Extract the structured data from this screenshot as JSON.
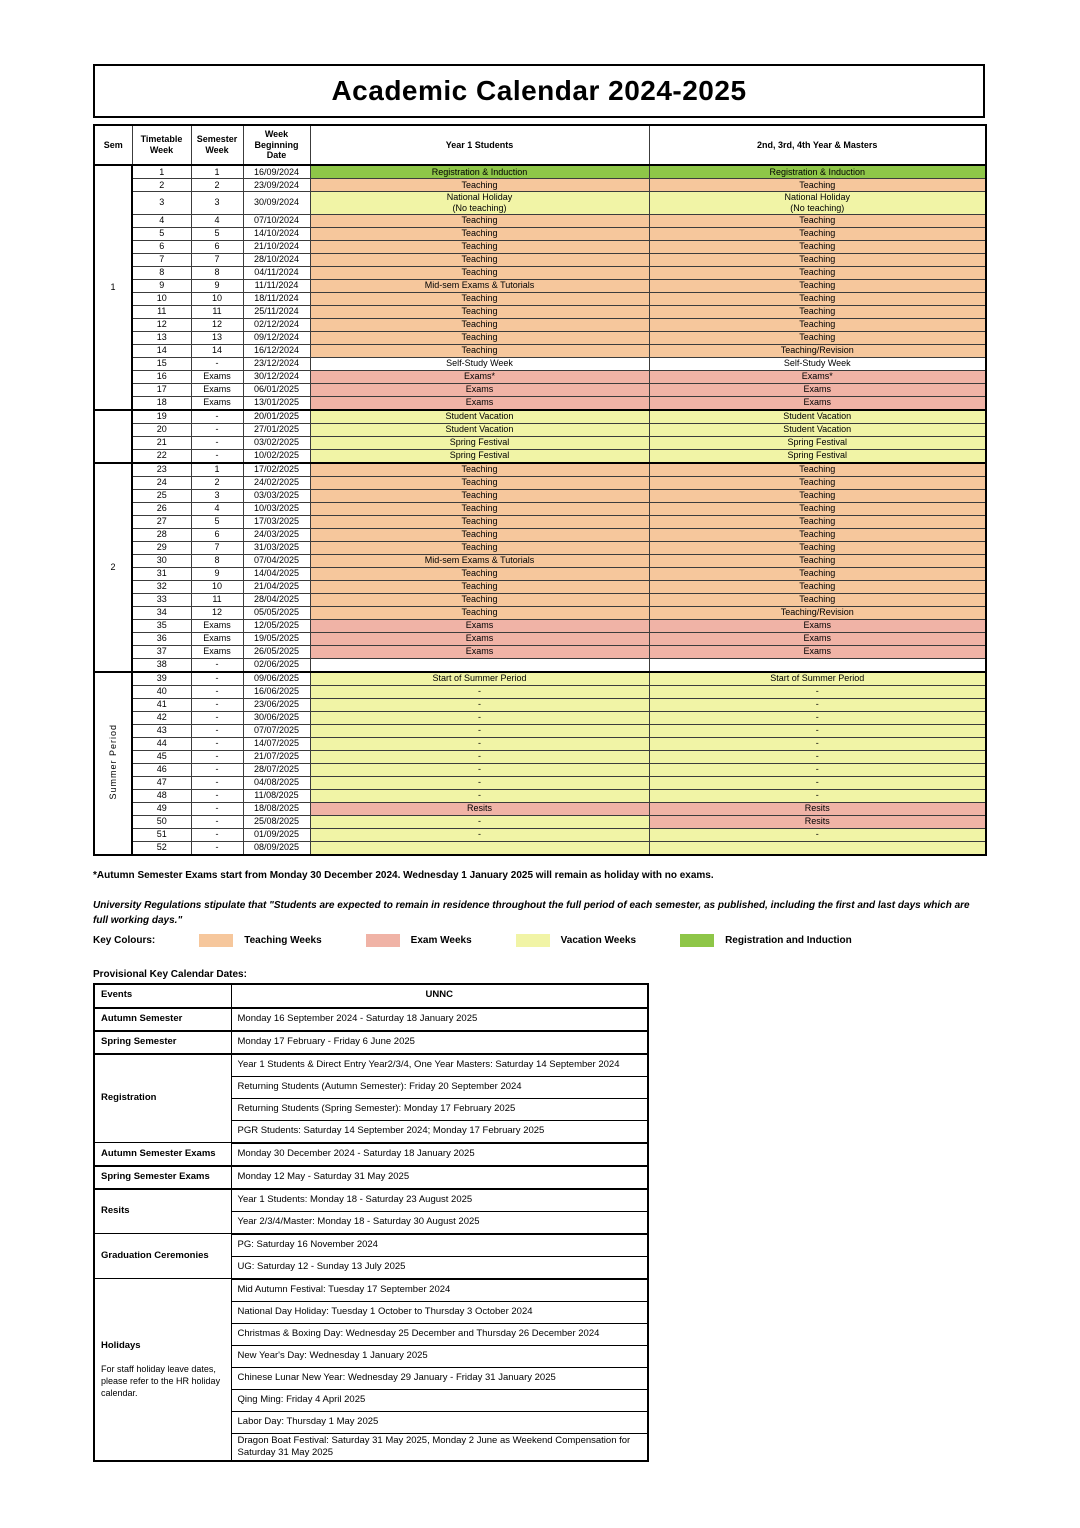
{
  "title": "Academic Calendar 2024-2025",
  "colors": {
    "teaching": "#F6C79C",
    "exams": "#F0B3A6",
    "vacation": "#F1F4A6",
    "induction": "#8EC648",
    "plain": "#FFFFFF"
  },
  "main_table": {
    "headers": [
      "Sem",
      "Timetable Week",
      "Semester Week",
      "Week Beginning Date",
      "Year 1 Students",
      "2nd, 3rd, 4th Year & Masters"
    ],
    "groups": [
      {
        "label": "1",
        "vertical": false,
        "count": 18
      },
      {
        "label": "",
        "vertical": false,
        "count": 4
      },
      {
        "label": "2",
        "vertical": false,
        "count": 16
      },
      {
        "label": "Summer Period",
        "vertical": true,
        "count": 14
      }
    ],
    "rows": [
      [
        "1",
        "1",
        "16/09/2024",
        "Registration & Induction",
        "induction",
        "Registration & Induction",
        "induction"
      ],
      [
        "2",
        "2",
        "23/09/2024",
        "Teaching",
        "teaching",
        "Teaching",
        "teaching"
      ],
      [
        "3",
        "3",
        "30/09/2024",
        "National Holiday\n(No teaching)",
        "vacation",
        "National Holiday\n(No teaching)",
        "vacation"
      ],
      [
        "4",
        "4",
        "07/10/2024",
        "Teaching",
        "teaching",
        "Teaching",
        "teaching"
      ],
      [
        "5",
        "5",
        "14/10/2024",
        "Teaching",
        "teaching",
        "Teaching",
        "teaching"
      ],
      [
        "6",
        "6",
        "21/10/2024",
        "Teaching",
        "teaching",
        "Teaching",
        "teaching"
      ],
      [
        "7",
        "7",
        "28/10/2024",
        "Teaching",
        "teaching",
        "Teaching",
        "teaching"
      ],
      [
        "8",
        "8",
        "04/11/2024",
        "Teaching",
        "teaching",
        "Teaching",
        "teaching"
      ],
      [
        "9",
        "9",
        "11/11/2024",
        "Mid-sem Exams & Tutorials",
        "teaching",
        "Teaching",
        "teaching"
      ],
      [
        "10",
        "10",
        "18/11/2024",
        "Teaching",
        "teaching",
        "Teaching",
        "teaching"
      ],
      [
        "11",
        "11",
        "25/11/2024",
        "Teaching",
        "teaching",
        "Teaching",
        "teaching"
      ],
      [
        "12",
        "12",
        "02/12/2024",
        "Teaching",
        "teaching",
        "Teaching",
        "teaching"
      ],
      [
        "13",
        "13",
        "09/12/2024",
        "Teaching",
        "teaching",
        "Teaching",
        "teaching"
      ],
      [
        "14",
        "14",
        "16/12/2024",
        "Teaching",
        "teaching",
        "Teaching/Revision",
        "teaching"
      ],
      [
        "15",
        "-",
        "23/12/2024",
        "Self-Study Week",
        "plain",
        "Self-Study Week",
        "plain"
      ],
      [
        "16",
        "Exams",
        "30/12/2024",
        "Exams*",
        "exams",
        "Exams*",
        "exams"
      ],
      [
        "17",
        "Exams",
        "06/01/2025",
        "Exams",
        "exams",
        "Exams",
        "exams"
      ],
      [
        "18",
        "Exams",
        "13/01/2025",
        "Exams",
        "exams",
        "Exams",
        "exams"
      ],
      [
        "19",
        "-",
        "20/01/2025",
        "Student Vacation",
        "vacation",
        "Student Vacation",
        "vacation"
      ],
      [
        "20",
        "-",
        "27/01/2025",
        "Student Vacation",
        "vacation",
        "Student Vacation",
        "vacation"
      ],
      [
        "21",
        "-",
        "03/02/2025",
        "Spring Festival",
        "vacation",
        "Spring Festival",
        "vacation"
      ],
      [
        "22",
        "-",
        "10/02/2025",
        "Spring Festival",
        "vacation",
        "Spring Festival",
        "vacation"
      ],
      [
        "23",
        "1",
        "17/02/2025",
        "Teaching",
        "teaching",
        "Teaching",
        "teaching"
      ],
      [
        "24",
        "2",
        "24/02/2025",
        "Teaching",
        "teaching",
        "Teaching",
        "teaching"
      ],
      [
        "25",
        "3",
        "03/03/2025",
        "Teaching",
        "teaching",
        "Teaching",
        "teaching"
      ],
      [
        "26",
        "4",
        "10/03/2025",
        "Teaching",
        "teaching",
        "Teaching",
        "teaching"
      ],
      [
        "27",
        "5",
        "17/03/2025",
        "Teaching",
        "teaching",
        "Teaching",
        "teaching"
      ],
      [
        "28",
        "6",
        "24/03/2025",
        "Teaching",
        "teaching",
        "Teaching",
        "teaching"
      ],
      [
        "29",
        "7",
        "31/03/2025",
        "Teaching",
        "teaching",
        "Teaching",
        "teaching"
      ],
      [
        "30",
        "8",
        "07/04/2025",
        "Mid-sem Exams & Tutorials",
        "teaching",
        "Teaching",
        "teaching"
      ],
      [
        "31",
        "9",
        "14/04/2025",
        "Teaching",
        "teaching",
        "Teaching",
        "teaching"
      ],
      [
        "32",
        "10",
        "21/04/2025",
        "Teaching",
        "teaching",
        "Teaching",
        "teaching"
      ],
      [
        "33",
        "11",
        "28/04/2025",
        "Teaching",
        "teaching",
        "Teaching",
        "teaching"
      ],
      [
        "34",
        "12",
        "05/05/2025",
        "Teaching",
        "teaching",
        "Teaching/Revision",
        "teaching"
      ],
      [
        "35",
        "Exams",
        "12/05/2025",
        "Exams",
        "exams",
        "Exams",
        "exams"
      ],
      [
        "36",
        "Exams",
        "19/05/2025",
        "Exams",
        "exams",
        "Exams",
        "exams"
      ],
      [
        "37",
        "Exams",
        "26/05/2025",
        "Exams",
        "exams",
        "Exams",
        "exams"
      ],
      [
        "38",
        "-",
        "02/06/2025",
        "",
        "plain",
        "",
        "plain"
      ],
      [
        "39",
        "-",
        "09/06/2025",
        "Start of Summer Period",
        "vacation",
        "Start of Summer Period",
        "vacation"
      ],
      [
        "40",
        "-",
        "16/06/2025",
        "-",
        "vacation",
        "-",
        "vacation"
      ],
      [
        "41",
        "-",
        "23/06/2025",
        "-",
        "vacation",
        "-",
        "vacation"
      ],
      [
        "42",
        "-",
        "30/06/2025",
        "-",
        "vacation",
        "-",
        "vacation"
      ],
      [
        "43",
        "-",
        "07/07/2025",
        "-",
        "vacation",
        "-",
        "vacation"
      ],
      [
        "44",
        "-",
        "14/07/2025",
        "-",
        "vacation",
        "-",
        "vacation"
      ],
      [
        "45",
        "-",
        "21/07/2025",
        "-",
        "vacation",
        "-",
        "vacation"
      ],
      [
        "46",
        "-",
        "28/07/2025",
        "-",
        "vacation",
        "-",
        "vacation"
      ],
      [
        "47",
        "-",
        "04/08/2025",
        "-",
        "vacation",
        "-",
        "vacation"
      ],
      [
        "48",
        "-",
        "11/08/2025",
        "-",
        "vacation",
        "-",
        "vacation"
      ],
      [
        "49",
        "-",
        "18/08/2025",
        "Resits",
        "exams",
        "Resits",
        "exams"
      ],
      [
        "50",
        "-",
        "25/08/2025",
        "-",
        "vacation",
        "Resits",
        "exams"
      ],
      [
        "51",
        "-",
        "01/09/2025",
        "-",
        "vacation",
        "-",
        "vacation"
      ],
      [
        "52",
        "-",
        "08/09/2025",
        "",
        "vacation",
        "",
        "vacation"
      ]
    ]
  },
  "notes": {
    "exams_note": "*Autumn Semester Exams start from Monday 30 December 2024. Wednesday 1 January 2025 will remain as holiday with no exams.",
    "regulations": "University Regulations stipulate that \"Students are expected to remain in residence throughout the full period of each semester, as published, including the first and last days which are full working days.\""
  },
  "key_colours": {
    "label": "Key Colours:",
    "items": [
      {
        "label": "Teaching Weeks",
        "color": "#F6C79C"
      },
      {
        "label": "Exam Weeks",
        "color": "#F0B3A6"
      },
      {
        "label": "Vacation Weeks",
        "color": "#F1F4A6"
      },
      {
        "label": "Registration and Induction",
        "color": "#8EC648"
      }
    ]
  },
  "key_dates": {
    "heading": "Provisional Key Calendar Dates:",
    "headers": [
      "Events",
      "UNNC"
    ],
    "groups": [
      {
        "event": "Autumn Semester",
        "rows": [
          "Monday 16 September 2024 - Saturday 18 January 2025"
        ]
      },
      {
        "event": "Spring Semester",
        "rows": [
          "Monday 17 February - Friday 6 June 2025"
        ]
      },
      {
        "event": "Registration",
        "rows": [
          "Year 1 Students & Direct Entry Year2/3/4, One Year Masters: Saturday 14 September 2024",
          "Returning Students (Autumn Semester): Friday 20 September 2024",
          "Returning Students (Spring Semester): Monday 17 February 2025",
          "PGR Students: Saturday 14 September 2024; Monday 17 February 2025"
        ]
      },
      {
        "event": "Autumn Semester Exams",
        "rows": [
          "Monday 30 December 2024 - Saturday 18 January 2025"
        ]
      },
      {
        "event": "Spring Semester Exams",
        "rows": [
          "Monday 12 May - Saturday 31 May 2025"
        ]
      },
      {
        "event": "Resits",
        "rows": [
          "Year 1 Students: Monday 18 - Saturday 23 August 2025",
          "Year 2/3/4/Master: Monday 18 - Saturday 30 August 2025"
        ]
      },
      {
        "event": "Graduation Ceremonies",
        "rows": [
          "PG: Saturday 16 November 2024",
          "UG: Saturday 12 - Sunday 13 July 2025"
        ]
      },
      {
        "event": "Holidays",
        "note": "For staff holiday leave dates, please refer to the HR holiday calendar.",
        "rows": [
          "Mid Autumn Festival: Tuesday 17 September 2024",
          "National Day Holiday: Tuesday 1 October to Thursday 3 October 2024",
          "Christmas & Boxing Day: Wednesday 25 December and Thursday 26 December 2024",
          "New Year's Day: Wednesday 1 January 2025",
          "Chinese Lunar New Year: Wednesday 29 January - Friday 31 January 2025",
          "Qing Ming: Friday 4 April 2025",
          "Labor Day: Thursday 1 May 2025",
          "Dragon Boat Festival: Saturday 31 May 2025, Monday 2 June as Weekend Compensation for Saturday 31 May 2025"
        ]
      }
    ]
  }
}
